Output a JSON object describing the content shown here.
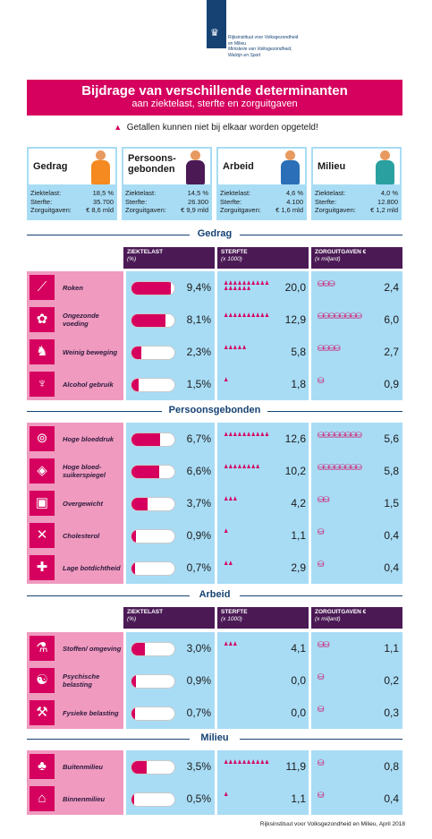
{
  "header": {
    "org_line1": "Rijksinstituut voor Volksgezondheid",
    "org_line2": "en Milieu",
    "org_line3": "Ministerie van Volksgezondheid,",
    "org_line4": "Welzijn en Sport"
  },
  "banner": {
    "title": "Bijdrage van verschillende determinanten",
    "subtitle": "aan ziektelast, sterfte en zorguitgaven"
  },
  "warning": {
    "text": "Getallen kunnen niet bij elkaar worden opgeteld!"
  },
  "cards": [
    {
      "name": "Gedrag",
      "ziektelast_label": "Ziektelast:",
      "ziektelast": "18,5 %",
      "sterfte_label": "Sterfte:",
      "sterfte": "35.700",
      "zorg_label": "Zorguitgaven:",
      "zorg": "€ 8,6 mld",
      "color": "#f48a20"
    },
    {
      "name": "Persoons-gebonden",
      "ziektelast_label": "Ziektelast:",
      "ziektelast": "14,5 %",
      "sterfte_label": "Sterfte:",
      "sterfte": "26.300",
      "zorg_label": "Zorguitgaven:",
      "zorg": "€ 9,9 mld",
      "color": "#4b1a55"
    },
    {
      "name": "Arbeid",
      "ziektelast_label": "Ziektelast:",
      "ziektelast": "4,6 %",
      "sterfte_label": "Sterfte:",
      "sterfte": "4.100",
      "zorg_label": "Zorguitgaven:",
      "zorg": "€ 1,6 mld",
      "color": "#2a6fb8"
    },
    {
      "name": "Milieu",
      "ziektelast_label": "Ziektelast:",
      "ziektelast": "4,0 %",
      "sterfte_label": "Sterfte:",
      "sterfte": "12.800",
      "zorg_label": "Zorguitgaven:",
      "zorg": "€ 1,2 mld",
      "color": "#2aa0a0"
    }
  ],
  "columns": {
    "ziektelast": "ZIEKTELAST",
    "ziektelast_unit": "(%)",
    "sterfte": "STERFTE",
    "sterfte_unit": "(x 1000)",
    "zorg": "ZORGUITGAVEN €",
    "zorg_unit": "(x miljard)"
  },
  "sections": [
    {
      "title": "Gedrag",
      "rows": [
        {
          "label": "Roken",
          "icon": "cigarette-icon",
          "pct": "9,4%",
          "pct_value": 9.4,
          "sterfte": "20,0",
          "sterfte_value": 20.0,
          "zorg": "2,4",
          "zorg_value": 2.4
        },
        {
          "label": "Ongezonde voeding",
          "icon": "food-icon",
          "pct": "8,1%",
          "pct_value": 8.1,
          "sterfte": "12,9",
          "sterfte_value": 12.9,
          "zorg": "6,0",
          "zorg_value": 6.0
        },
        {
          "label": "Weinig beweging",
          "icon": "couch-icon",
          "pct": "2,3%",
          "pct_value": 2.3,
          "sterfte": "5,8",
          "sterfte_value": 5.8,
          "zorg": "2,7",
          "zorg_value": 2.7
        },
        {
          "label": "Alcohol gebruik",
          "icon": "wine-glass-icon",
          "pct": "1,5%",
          "pct_value": 1.5,
          "sterfte": "1,8",
          "sterfte_value": 1.8,
          "zorg": "0,9",
          "zorg_value": 0.9
        }
      ]
    },
    {
      "title": "Persoonsgebonden",
      "rows": [
        {
          "label": "Hoge bloeddruk",
          "icon": "blood-pressure-icon",
          "pct": "6,7%",
          "pct_value": 6.7,
          "sterfte": "12,6",
          "sterfte_value": 12.6,
          "zorg": "5,6",
          "zorg_value": 5.6
        },
        {
          "label": "Hoge bloed-suikerspiegel",
          "icon": "sugar-icon",
          "pct": "6,6%",
          "pct_value": 6.6,
          "sterfte": "10,2",
          "sterfte_value": 10.2,
          "zorg": "5,8",
          "zorg_value": 5.8
        },
        {
          "label": "Overgewicht",
          "icon": "scale-icon",
          "pct": "3,7%",
          "pct_value": 3.7,
          "sterfte": "4,2",
          "sterfte_value": 4.2,
          "zorg": "1,5",
          "zorg_value": 1.5
        },
        {
          "label": "Cholesterol",
          "icon": "cholesterol-icon",
          "pct": "0,9%",
          "pct_value": 0.9,
          "sterfte": "1,1",
          "sterfte_value": 1.1,
          "zorg": "0,4",
          "zorg_value": 0.4
        },
        {
          "label": "Lage botdichtheid",
          "icon": "bone-icon",
          "pct": "0,7%",
          "pct_value": 0.7,
          "sterfte": "2,9",
          "sterfte_value": 2.9,
          "zorg": "0,4",
          "zorg_value": 0.4
        }
      ]
    },
    {
      "title": "Arbeid",
      "rows": [
        {
          "label": "Stoffen/ omgeving",
          "icon": "flask-icon",
          "pct": "3,0%",
          "pct_value": 3.0,
          "sterfte": "4,1",
          "sterfte_value": 4.1,
          "zorg": "1,1",
          "zorg_value": 1.1
        },
        {
          "label": "Psychische belasting",
          "icon": "brain-icon",
          "pct": "0,9%",
          "pct_value": 0.9,
          "sterfte": "0,0",
          "sterfte_value": 0.0,
          "zorg": "0,2",
          "zorg_value": 0.2
        },
        {
          "label": "Fysieke belasting",
          "icon": "lifting-icon",
          "pct": "0,7%",
          "pct_value": 0.7,
          "sterfte": "0,0",
          "sterfte_value": 0.0,
          "zorg": "0,3",
          "zorg_value": 0.3
        }
      ]
    },
    {
      "title": "Milieu",
      "rows": [
        {
          "label": "Buitenmilieu",
          "icon": "tree-icon",
          "pct": "3,5%",
          "pct_value": 3.5,
          "sterfte": "11,9",
          "sterfte_value": 11.9,
          "zorg": "0,8",
          "zorg_value": 0.8
        },
        {
          "label": "Binnenmilieu",
          "icon": "house-icon",
          "pct": "0,5%",
          "pct_value": 0.5,
          "sterfte": "1,1",
          "sterfte_value": 1.1,
          "zorg": "0,4",
          "zorg_value": 0.4
        }
      ]
    }
  ],
  "footer": {
    "text": "Rijksinstituut voor Volksgezondheid en Milieu, April 2018"
  },
  "colors": {
    "magenta": "#d6005e",
    "pink": "#f09ac0",
    "light_blue": "#a8dcf5",
    "purple": "#4b1a55",
    "navy": "#154273"
  }
}
